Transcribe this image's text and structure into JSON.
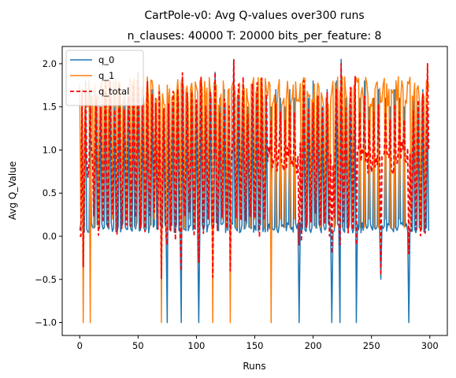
{
  "chart_data": {
    "type": "line",
    "title": "CartPole-v0: Avg Q-values over300 runs",
    "subtitle": "n_clauses: 40000 T: 20000 bits_per_feature: 8",
    "xlabel": "Runs",
    "ylabel": "Avg Q_Value",
    "xlim": [
      -15,
      315
    ],
    "ylim": [
      -1.15,
      2.2
    ],
    "xticks": [
      0,
      50,
      100,
      150,
      200,
      250,
      300
    ],
    "yticks": [
      -1.0,
      -0.5,
      0.0,
      0.5,
      1.0,
      1.5,
      2.0
    ],
    "xtick_labels": [
      "0",
      "50",
      "100",
      "150",
      "200",
      "250",
      "300"
    ],
    "ytick_labels": [
      "−1.0",
      "−0.5",
      "0.0",
      "0.5",
      "1.0",
      "1.5",
      "2.0"
    ],
    "legend_position": "upper-left",
    "grid": false,
    "n_points": 300,
    "series": [
      {
        "name": "q_0",
        "color": "#1f77b4",
        "style": "solid",
        "baseline": 0.1,
        "spikes": [
          [
            2,
            1.7
          ],
          [
            5,
            1.8
          ],
          [
            9,
            1.7
          ],
          [
            14,
            1.6
          ],
          [
            18,
            1.5
          ],
          [
            22,
            1.6
          ],
          [
            26,
            1.8
          ],
          [
            30,
            1.5
          ],
          [
            34,
            1.7
          ],
          [
            38,
            1.6
          ],
          [
            42,
            1.5
          ],
          [
            46,
            1.7
          ],
          [
            50,
            1.9
          ],
          [
            54,
            1.6
          ],
          [
            58,
            1.5
          ],
          [
            62,
            1.7
          ],
          [
            65,
            1.6
          ],
          [
            68,
            1.5
          ],
          [
            72,
            1.4
          ],
          [
            76,
            1.6
          ],
          [
            80,
            1.5
          ],
          [
            84,
            1.7
          ],
          [
            88,
            1.8
          ],
          [
            92,
            1.6
          ],
          [
            96,
            1.7
          ],
          [
            100,
            1.5
          ],
          [
            104,
            1.6
          ],
          [
            108,
            1.5
          ],
          [
            112,
            1.7
          ],
          [
            116,
            1.9
          ],
          [
            120,
            1.6
          ],
          [
            124,
            1.7
          ],
          [
            128,
            1.5
          ],
          [
            132,
            2.05
          ],
          [
            136,
            1.6
          ],
          [
            140,
            1.7
          ],
          [
            144,
            1.5
          ],
          [
            148,
            1.6
          ],
          [
            152,
            1.7
          ],
          [
            156,
            1.8
          ],
          [
            160,
            1.6
          ],
          [
            164,
            1.5
          ],
          [
            168,
            1.7
          ],
          [
            172,
            1.6
          ],
          [
            176,
            1.5
          ],
          [
            180,
            1.7
          ],
          [
            184,
            1.6
          ],
          [
            188,
            1.5
          ],
          [
            192,
            1.7
          ],
          [
            196,
            1.6
          ],
          [
            200,
            1.8
          ],
          [
            204,
            1.6
          ],
          [
            208,
            1.5
          ],
          [
            212,
            1.7
          ],
          [
            216,
            1.6
          ],
          [
            220,
            1.8
          ],
          [
            224,
            2.05
          ],
          [
            228,
            1.6
          ],
          [
            232,
            1.5
          ],
          [
            236,
            1.7
          ],
          [
            240,
            1.6
          ],
          [
            244,
            1.8
          ],
          [
            248,
            1.5
          ],
          [
            252,
            1.6
          ],
          [
            256,
            1.7
          ],
          [
            262,
            1.6
          ],
          [
            266,
            1.5
          ],
          [
            270,
            1.7
          ],
          [
            274,
            1.6
          ],
          [
            278,
            1.5
          ],
          [
            282,
            1.7
          ],
          [
            286,
            1.6
          ],
          [
            290,
            1.5
          ],
          [
            294,
            1.7
          ],
          [
            298,
            1.5
          ]
        ],
        "dips": [
          [
            75,
            -1.0
          ],
          [
            87,
            -1.0
          ],
          [
            102,
            -1.0
          ],
          [
            188,
            -1.0
          ],
          [
            216,
            -1.0
          ],
          [
            223,
            -1.0
          ],
          [
            237,
            -1.0
          ],
          [
            258,
            -0.5
          ],
          [
            282,
            -1.0
          ]
        ]
      },
      {
        "name": "q_1",
        "color": "#ff7f0e",
        "style": "solid",
        "baseline": 1.85,
        "lows": [
          [
            1,
            0.1
          ],
          [
            3,
            -1.0
          ],
          [
            4,
            1.2
          ],
          [
            7,
            1.5
          ],
          [
            9,
            -1.0
          ],
          [
            12,
            0.1
          ],
          [
            16,
            0.1
          ],
          [
            20,
            0.2
          ],
          [
            24,
            0.1
          ],
          [
            28,
            0.2
          ],
          [
            32,
            0.1
          ],
          [
            36,
            0.1
          ],
          [
            40,
            0.2
          ],
          [
            44,
            0.1
          ],
          [
            48,
            0.1
          ],
          [
            52,
            0.2
          ],
          [
            56,
            0.1
          ],
          [
            60,
            0.1
          ],
          [
            64,
            0.2
          ],
          [
            67,
            0.1
          ],
          [
            70,
            -1.0
          ],
          [
            74,
            0.1
          ],
          [
            78,
            0.2
          ],
          [
            82,
            0.1
          ],
          [
            86,
            0.1
          ],
          [
            90,
            0.1
          ],
          [
            94,
            0.2
          ],
          [
            98,
            0.1
          ],
          [
            102,
            0.1
          ],
          [
            106,
            0.1
          ],
          [
            110,
            0.2
          ],
          [
            114,
            -1.0
          ],
          [
            118,
            0.1
          ],
          [
            122,
            0.2
          ],
          [
            126,
            0.1
          ],
          [
            129,
            -1.0
          ],
          [
            134,
            0.1
          ],
          [
            138,
            0.2
          ],
          [
            142,
            0.1
          ],
          [
            146,
            0.1
          ],
          [
            150,
            0.2
          ],
          [
            154,
            0.1
          ],
          [
            158,
            0.1
          ],
          [
            164,
            -1.0
          ],
          [
            168,
            0.1
          ],
          [
            172,
            0.2
          ],
          [
            176,
            0.1
          ],
          [
            180,
            0.1
          ],
          [
            184,
            0.2
          ],
          [
            190,
            0.1
          ],
          [
            194,
            0.1
          ],
          [
            198,
            0.2
          ],
          [
            202,
            0.1
          ],
          [
            206,
            0.1
          ],
          [
            210,
            0.2
          ],
          [
            214,
            0.1
          ],
          [
            218,
            0.1
          ],
          [
            222,
            0.2
          ],
          [
            226,
            0.1
          ],
          [
            230,
            0.1
          ],
          [
            234,
            0.2
          ],
          [
            240,
            0.1
          ],
          [
            244,
            0.1
          ],
          [
            248,
            0.2
          ],
          [
            252,
            0.1
          ],
          [
            256,
            0.1
          ],
          [
            262,
            0.2
          ],
          [
            266,
            0.1
          ],
          [
            270,
            0.1
          ],
          [
            274,
            0.2
          ],
          [
            278,
            0.1
          ],
          [
            284,
            0.1
          ],
          [
            288,
            0.2
          ],
          [
            292,
            0.1
          ],
          [
            296,
            0.1
          ]
        ]
      },
      {
        "name": "q_total",
        "color": "#ff0000",
        "style": "dashed",
        "baseline": 0.9,
        "extremes": [
          [
            0,
            0.0
          ],
          [
            1,
            0.0
          ],
          [
            5,
            1.7
          ],
          [
            26,
            1.8
          ],
          [
            50,
            1.9
          ],
          [
            75,
            -0.1
          ],
          [
            87,
            -0.4
          ],
          [
            102,
            -0.3
          ],
          [
            116,
            1.9
          ],
          [
            132,
            2.05
          ],
          [
            188,
            -0.1
          ],
          [
            216,
            -0.2
          ],
          [
            223,
            -0.1
          ],
          [
            224,
            2.0
          ],
          [
            237,
            -0.1
          ],
          [
            258,
            -0.45
          ],
          [
            282,
            -0.2
          ],
          [
            298,
            2.0
          ]
        ]
      }
    ]
  }
}
